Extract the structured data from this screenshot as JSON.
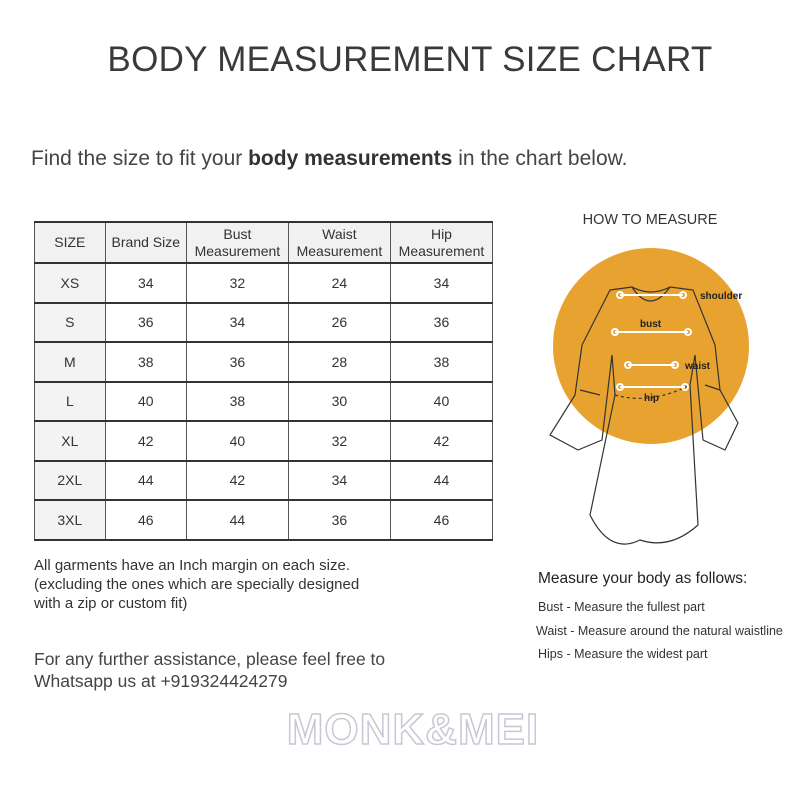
{
  "title": "BODY MEASUREMENT SIZE CHART",
  "intro": {
    "before": "Find the size to fit your ",
    "bold": "body measurements",
    "after": " in the chart below."
  },
  "table": {
    "headers": [
      "SIZE",
      "Brand Size",
      "Bust Measurement",
      "Waist Measurement",
      "Hip Measurement"
    ],
    "rows": [
      [
        "XS",
        "34",
        "32",
        "24",
        "34"
      ],
      [
        "S",
        "36",
        "34",
        "26",
        "36"
      ],
      [
        "M",
        "38",
        "36",
        "28",
        "38"
      ],
      [
        "L",
        "40",
        "38",
        "30",
        "40"
      ],
      [
        "XL",
        "42",
        "40",
        "32",
        "42"
      ],
      [
        "2XL",
        "44",
        "42",
        "34",
        "44"
      ],
      [
        "3XL",
        "46",
        "44",
        "36",
        "46"
      ]
    ]
  },
  "notes": [
    "All garments have an Inch margin on each size.",
    "(excluding the ones which are specially designed",
    "with a zip or custom fit)"
  ],
  "help": [
    "For any further assistance, please feel free to",
    "Whatsapp us at +919324424279"
  ],
  "how_to": {
    "title": "HOW TO MEASURE",
    "labels": {
      "shoulder": "shoulder",
      "bust": "bust",
      "waist": "waist",
      "hip": "hip"
    },
    "circle_color": "#e8a230",
    "heading": "Measure your body as follows:",
    "items": [
      "Bust - Measure the fullest part",
      "Waist - Measure around the natural waistline",
      "Hips - Measure the widest part"
    ]
  },
  "logo": "MONK&MEI"
}
